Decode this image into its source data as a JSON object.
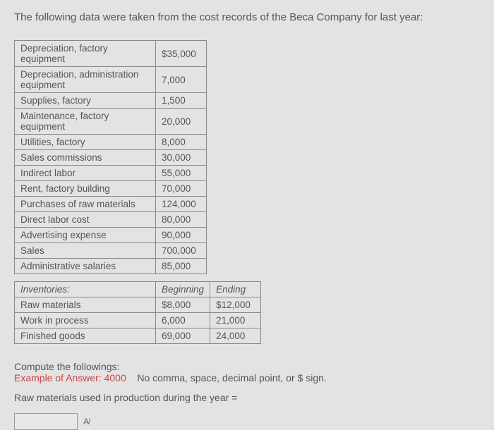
{
  "intro": "The following data were taken from the cost records of the Beca Company for last year:",
  "costs": {
    "rows": [
      {
        "label": "Depreciation, factory equipment",
        "value": "$35,000"
      },
      {
        "label": "Depreciation, administration equipment",
        "value": "7,000"
      },
      {
        "label": "Supplies, factory",
        "value": "1,500"
      },
      {
        "label": "Maintenance, factory equipment",
        "value": "20,000"
      },
      {
        "label": "Utilities, factory",
        "value": "8,000"
      },
      {
        "label": "Sales commissions",
        "value": "30,000"
      },
      {
        "label": "Indirect labor",
        "value": "55,000"
      },
      {
        "label": "Rent, factory building",
        "value": "70,000"
      },
      {
        "label": "Purchases of raw materials",
        "value": "124,000"
      },
      {
        "label": "Direct labor cost",
        "value": "80,000"
      },
      {
        "label": "Advertising expense",
        "value": "90,000"
      },
      {
        "label": "Sales",
        "value": "700,000"
      },
      {
        "label": "Administrative salaries",
        "value": "85,000"
      }
    ]
  },
  "inventories": {
    "header": {
      "label": "Inventories:",
      "beg": "Beginning",
      "end": "Ending"
    },
    "rows": [
      {
        "label": "Raw materials",
        "beg": "$8,000",
        "end": "$12,000"
      },
      {
        "label": "Work in process",
        "beg": "6,000",
        "end": "21,000"
      },
      {
        "label": "Finished goods",
        "beg": "69,000",
        "end": "24,000"
      }
    ]
  },
  "footer": {
    "compute": "Compute the followings:",
    "example_label": "Example of Answer: 4000",
    "example_note": "No comma, space, decimal point, or $ sign.",
    "question": "Raw materials used in production during the year ="
  },
  "input": {
    "value": "",
    "icon_label": "A/"
  }
}
